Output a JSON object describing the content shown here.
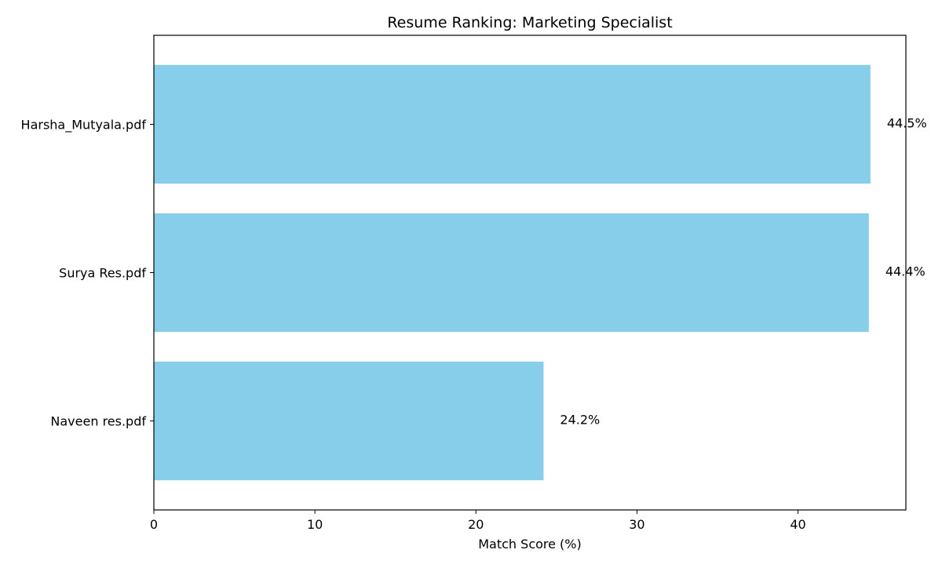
{
  "chart_data": {
    "type": "bar",
    "orientation": "horizontal",
    "title": "Resume Ranking: Marketing Specialist",
    "xlabel": "Match Score (%)",
    "ylabel": "",
    "categories": [
      "Harsha_Mutyala.pdf",
      "Surya Res.pdf",
      "Naveen res.pdf"
    ],
    "values": [
      44.5,
      44.4,
      24.2
    ],
    "data_labels": [
      "44.5%",
      "44.4%",
      "24.2%"
    ],
    "xlim": [
      0,
      46.7
    ],
    "xticks": [
      0,
      10,
      20,
      30,
      40
    ],
    "xtick_labels": [
      "0",
      "10",
      "20",
      "30",
      "40"
    ],
    "grid": false,
    "legend": "none",
    "colors": {
      "bar": "#87ceeb",
      "axes": "#000000",
      "background": "#ffffff"
    }
  }
}
